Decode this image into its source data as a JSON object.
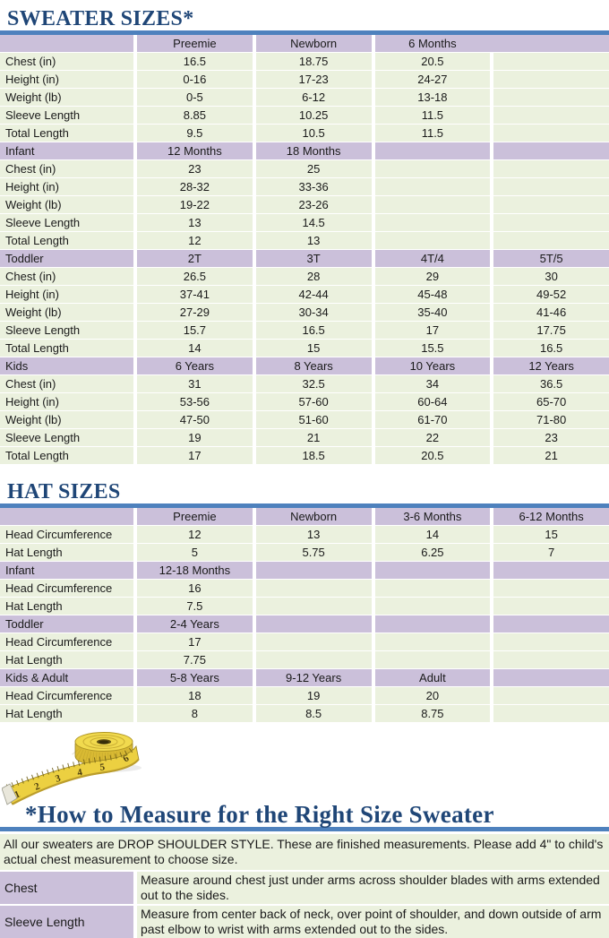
{
  "colors": {
    "header_purple": "#cbc0da",
    "row_green": "#ebf1de",
    "accent_blue": "#4e81bd",
    "title_navy": "#1f4677"
  },
  "sweater_table": {
    "title": "SWEATER SIZES*",
    "sections": [
      {
        "label": "",
        "cols": [
          "Preemie",
          "Newborn",
          "6 Months",
          ""
        ],
        "merge_last_gap": true,
        "rows": [
          {
            "label": "Chest (in)",
            "values": [
              "16.5",
              "18.75",
              "20.5",
              ""
            ]
          },
          {
            "label": "Height (in)",
            "values": [
              "0-16",
              "17-23",
              "24-27",
              ""
            ]
          },
          {
            "label": "Weight (lb)",
            "values": [
              "0-5",
              "6-12",
              "13-18",
              ""
            ]
          },
          {
            "label": "Sleeve Length",
            "values": [
              "8.85",
              "10.25",
              "11.5",
              ""
            ]
          },
          {
            "label": "Total Length",
            "values": [
              "9.5",
              "10.5",
              "11.5",
              ""
            ]
          }
        ]
      },
      {
        "label": "Infant",
        "cols": [
          "12 Months",
          "18 Months",
          "",
          ""
        ],
        "rows": [
          {
            "label": "Chest (in)",
            "values": [
              "23",
              "25",
              "",
              ""
            ]
          },
          {
            "label": "Height (in)",
            "values": [
              "28-32",
              "33-36",
              "",
              ""
            ]
          },
          {
            "label": "Weight (lb)",
            "values": [
              "19-22",
              "23-26",
              "",
              ""
            ]
          },
          {
            "label": "Sleeve Length",
            "values": [
              "13",
              "14.5",
              "",
              ""
            ]
          },
          {
            "label": "Total Length",
            "values": [
              "12",
              "13",
              "",
              ""
            ]
          }
        ]
      },
      {
        "label": "Toddler",
        "cols": [
          "2T",
          "3T",
          "4T/4",
          "5T/5"
        ],
        "rows": [
          {
            "label": "Chest (in)",
            "values": [
              "26.5",
              "28",
              "29",
              "30"
            ]
          },
          {
            "label": "Height (in)",
            "values": [
              "37-41",
              "42-44",
              "45-48",
              "49-52"
            ]
          },
          {
            "label": "Weight (lb)",
            "values": [
              "27-29",
              "30-34",
              "35-40",
              "41-46"
            ]
          },
          {
            "label": "Sleeve Length",
            "values": [
              "15.7",
              "16.5",
              "17",
              "17.75"
            ]
          },
          {
            "label": "Total Length",
            "values": [
              "14",
              "15",
              "15.5",
              "16.5"
            ]
          }
        ]
      },
      {
        "label": "Kids",
        "cols": [
          "6 Years",
          "8 Years",
          "10 Years",
          "12 Years"
        ],
        "rows": [
          {
            "label": "Chest (in)",
            "values": [
              "31",
              "32.5",
              "34",
              "36.5"
            ]
          },
          {
            "label": "Height (in)",
            "values": [
              "53-56",
              "57-60",
              "60-64",
              "65-70"
            ]
          },
          {
            "label": "Weight (lb)",
            "values": [
              "47-50",
              "51-60",
              "61-70",
              "71-80"
            ]
          },
          {
            "label": "Sleeve Length",
            "values": [
              "19",
              "21",
              "22",
              "23"
            ]
          },
          {
            "label": "Total Length",
            "values": [
              "17",
              "18.5",
              "20.5",
              "21"
            ]
          }
        ]
      }
    ]
  },
  "hat_table": {
    "title": "HAT SIZES",
    "sections": [
      {
        "label": "",
        "cols": [
          "Preemie",
          "Newborn",
          "3-6 Months",
          "6-12 Months"
        ],
        "rows": [
          {
            "label": "Head Circumference",
            "values": [
              "12",
              "13",
              "14",
              "15"
            ]
          },
          {
            "label": "Hat Length",
            "values": [
              "5",
              "5.75",
              "6.25",
              "7"
            ]
          }
        ]
      },
      {
        "label": "Infant",
        "cols": [
          "12-18 Months",
          "",
          "",
          ""
        ],
        "rows": [
          {
            "label": "Head Circumference",
            "values": [
              "16",
              "",
              "",
              ""
            ]
          },
          {
            "label": "Hat Length",
            "values": [
              "7.5",
              "",
              "",
              ""
            ]
          }
        ]
      },
      {
        "label": "Toddler",
        "cols": [
          "2-4 Years",
          "",
          "",
          ""
        ],
        "rows": [
          {
            "label": "Head Circumference",
            "values": [
              "17",
              "",
              "",
              ""
            ]
          },
          {
            "label": "Hat Length",
            "values": [
              "7.75",
              "",
              "",
              ""
            ]
          }
        ]
      },
      {
        "label": "Kids & Adult",
        "cols": [
          "5-8 Years",
          "9-12 Years",
          "Adult",
          ""
        ],
        "rows": [
          {
            "label": "Head Circumference",
            "values": [
              "18",
              "19",
              "20",
              ""
            ]
          },
          {
            "label": "Hat Length",
            "values": [
              "8",
              "8.5",
              "8.75",
              ""
            ]
          }
        ]
      }
    ]
  },
  "measure": {
    "title": "*How to Measure for the Right Size Sweater",
    "intro": "All our sweaters are DROP SHOULDER STYLE.  These are finished measurements.  Please add 4\" to child's actual chest measurement to choose size.",
    "items": [
      {
        "label": "Chest",
        "text": "Measure around chest just under arms across shoulder blades with arms extended out to the sides."
      },
      {
        "label": "Sleeve Length",
        "text": "Measure from center back of neck, over point of shoulder, and down outside of arm past elbow to wrist with arms extended out to the sides."
      }
    ],
    "tape_numbers": [
      "1",
      "2",
      "3",
      "4",
      "5",
      "6"
    ]
  }
}
